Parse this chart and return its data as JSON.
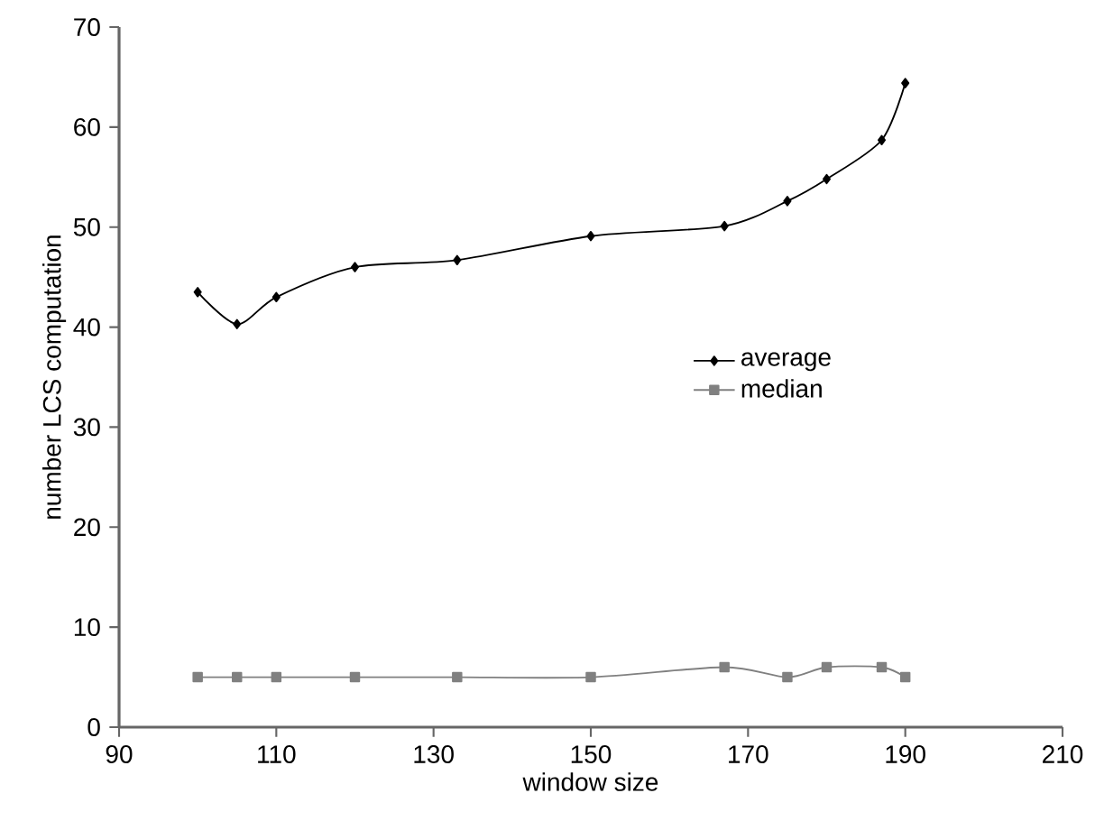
{
  "chart_data": {
    "type": "line",
    "xlabel": "window size",
    "ylabel": "number LCS computation",
    "xlim": [
      90,
      210
    ],
    "xticks": [
      90,
      110,
      130,
      150,
      170,
      190,
      210
    ],
    "ylim": [
      0,
      70
    ],
    "yticks": [
      0,
      10,
      20,
      30,
      40,
      50,
      60,
      70
    ],
    "x": [
      100,
      105,
      110,
      120,
      133,
      150,
      167,
      175,
      180,
      187,
      190
    ],
    "series": [
      {
        "name": "average",
        "color": "#000000",
        "marker": "diamond",
        "values": [
          43.5,
          40.3,
          43.0,
          46.0,
          46.7,
          49.1,
          50.1,
          52.6,
          54.8,
          58.7,
          64.4
        ]
      },
      {
        "name": "median",
        "color": "#808080",
        "marker": "square",
        "values": [
          5,
          5,
          5,
          5,
          5,
          5,
          6,
          5,
          6,
          6,
          5
        ]
      }
    ],
    "grid": false,
    "legend": "right",
    "line_style": "solid"
  }
}
